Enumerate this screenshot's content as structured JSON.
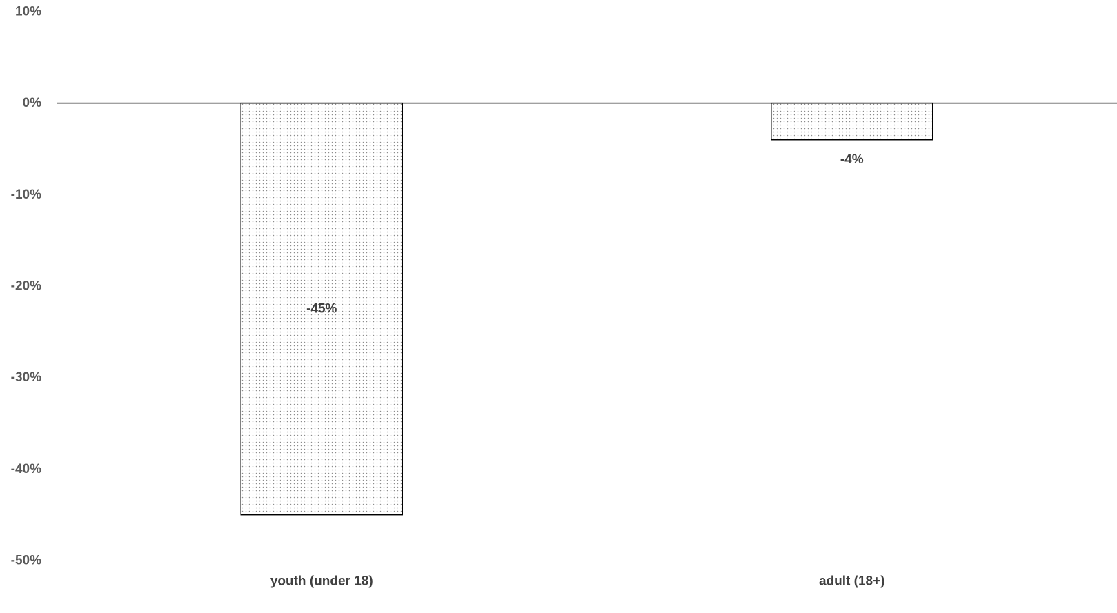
{
  "chart_data": {
    "type": "bar",
    "title": "",
    "xlabel": "",
    "ylabel": "",
    "categories": [
      "youth (under 18)",
      "adult (18+)"
    ],
    "values": [
      -45,
      -4
    ],
    "data_labels": [
      "-45%",
      "-4%"
    ],
    "ylim": [
      -50,
      10
    ],
    "yticks": [
      10,
      0,
      -10,
      -20,
      -30,
      -40,
      -50
    ],
    "ytick_labels": [
      "10%",
      "0%",
      "-10%",
      "-20%",
      "-30%",
      "-40%",
      "-50%"
    ],
    "grid": false,
    "legend": "none",
    "bar_fill": "dotted gray pattern",
    "colors": {
      "bar_outline": "#000000",
      "dot": "#8c8c8c",
      "axis_line": "#000000",
      "tick_text": "#595959",
      "label_text": "#404040"
    }
  }
}
